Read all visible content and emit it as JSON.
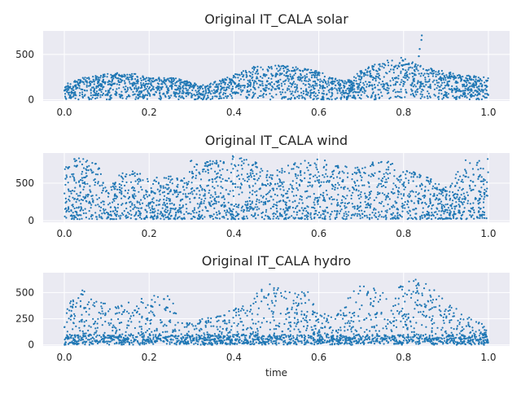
{
  "figure": {
    "xlabel": "time"
  },
  "colors": {
    "axes_bg": "#eaeaf2",
    "grid": "#ffffff",
    "marker": "#1f77b4",
    "text": "#262626"
  },
  "chart_data": [
    {
      "type": "scatter",
      "title": "Original IT_CALA solar",
      "xlabel": "",
      "ylabel": "",
      "xlim": [
        -0.05,
        1.05
      ],
      "ylim": [
        -15,
        760
      ],
      "xticks": [
        0.0,
        0.2,
        0.4,
        0.6,
        0.8,
        1.0
      ],
      "xtick_labels": [
        "0.0",
        "0.2",
        "0.4",
        "0.6",
        "0.8",
        "1.0"
      ],
      "yticks": [
        0,
        500
      ],
      "ytick_labels": [
        "0",
        "500"
      ],
      "grid": true,
      "series": [
        {
          "name": "",
          "envelope": [
            [
              0.0,
              190
            ],
            [
              0.03,
              230
            ],
            [
              0.08,
              275
            ],
            [
              0.12,
              300
            ],
            [
              0.16,
              295
            ],
            [
              0.2,
              240
            ],
            [
              0.25,
              250
            ],
            [
              0.3,
              195
            ],
            [
              0.33,
              160
            ],
            [
              0.37,
              225
            ],
            [
              0.41,
              300
            ],
            [
              0.45,
              370
            ],
            [
              0.5,
              380
            ],
            [
              0.55,
              360
            ],
            [
              0.6,
              320
            ],
            [
              0.63,
              240
            ],
            [
              0.67,
              215
            ],
            [
              0.7,
              330
            ],
            [
              0.75,
              420
            ],
            [
              0.79,
              470
            ],
            [
              0.81,
              440
            ],
            [
              0.85,
              360
            ],
            [
              0.9,
              310
            ],
            [
              0.95,
              270
            ],
            [
              1.0,
              250
            ]
          ],
          "outliers": [
            [
              0.843,
              710
            ],
            [
              0.842,
              660
            ],
            [
              0.838,
              560
            ],
            [
              0.836,
              480
            ]
          ]
        }
      ]
    },
    {
      "type": "scatter",
      "title": "Original IT_CALA wind",
      "xlabel": "",
      "ylabel": "",
      "xlim": [
        -0.05,
        1.05
      ],
      "ylim": [
        -20,
        900
      ],
      "xticks": [
        0.0,
        0.2,
        0.4,
        0.6,
        0.8,
        1.0
      ],
      "xtick_labels": [
        "0.0",
        "0.2",
        "0.4",
        "0.6",
        "0.8",
        "1.0"
      ],
      "yticks": [
        0,
        500
      ],
      "ytick_labels": [
        "0",
        "500"
      ],
      "grid": true,
      "series": [
        {
          "name": "",
          "envelope": [
            [
              0.0,
              700
            ],
            [
              0.02,
              840
            ],
            [
              0.05,
              820
            ],
            [
              0.08,
              780
            ],
            [
              0.1,
              430
            ],
            [
              0.13,
              620
            ],
            [
              0.16,
              680
            ],
            [
              0.2,
              560
            ],
            [
              0.24,
              610
            ],
            [
              0.28,
              550
            ],
            [
              0.3,
              820
            ],
            [
              0.34,
              790
            ],
            [
              0.38,
              850
            ],
            [
              0.41,
              870
            ],
            [
              0.45,
              800
            ],
            [
              0.48,
              680
            ],
            [
              0.52,
              720
            ],
            [
              0.56,
              800
            ],
            [
              0.6,
              820
            ],
            [
              0.64,
              790
            ],
            [
              0.68,
              700
            ],
            [
              0.72,
              780
            ],
            [
              0.76,
              830
            ],
            [
              0.8,
              700
            ],
            [
              0.84,
              620
            ],
            [
              0.88,
              520
            ],
            [
              0.91,
              460
            ],
            [
              0.94,
              820
            ],
            [
              0.97,
              780
            ],
            [
              1.0,
              840
            ]
          ]
        }
      ]
    },
    {
      "type": "scatter",
      "title": "Original IT_CALA hydro",
      "xlabel": "time",
      "ylabel": "",
      "xlim": [
        -0.05,
        1.05
      ],
      "ylim": [
        -10,
        690
      ],
      "xticks": [
        0.0,
        0.2,
        0.4,
        0.6,
        0.8,
        1.0
      ],
      "xtick_labels": [
        "0.0",
        "0.2",
        "0.4",
        "0.6",
        "0.8",
        "1.0"
      ],
      "yticks": [
        0,
        250,
        500
      ],
      "ytick_labels": [
        "0",
        "250",
        "500"
      ],
      "grid": true,
      "series": [
        {
          "name": "",
          "envelope": [
            [
              0.0,
              300
            ],
            [
              0.02,
              480
            ],
            [
              0.05,
              540
            ],
            [
              0.08,
              420
            ],
            [
              0.12,
              360
            ],
            [
              0.16,
              430
            ],
            [
              0.2,
              470
            ],
            [
              0.25,
              470
            ],
            [
              0.27,
              250
            ],
            [
              0.3,
              220
            ],
            [
              0.35,
              280
            ],
            [
              0.4,
              340
            ],
            [
              0.44,
              420
            ],
            [
              0.47,
              620
            ],
            [
              0.5,
              580
            ],
            [
              0.55,
              530
            ],
            [
              0.58,
              510
            ],
            [
              0.6,
              300
            ],
            [
              0.65,
              320
            ],
            [
              0.68,
              540
            ],
            [
              0.72,
              600
            ],
            [
              0.76,
              480
            ],
            [
              0.8,
              580
            ],
            [
              0.83,
              650
            ],
            [
              0.86,
              580
            ],
            [
              0.9,
              430
            ],
            [
              0.94,
              300
            ],
            [
              0.97,
              250
            ],
            [
              1.0,
              200
            ]
          ]
        }
      ]
    }
  ]
}
